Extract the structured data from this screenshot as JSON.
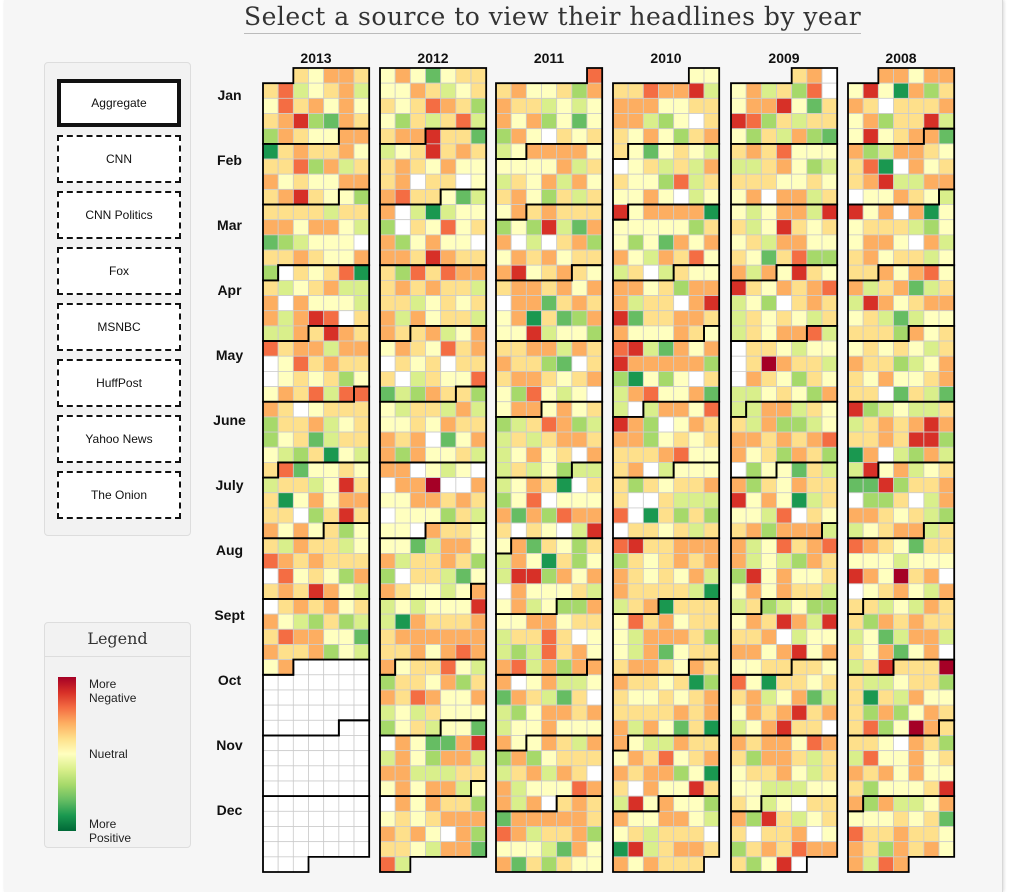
{
  "title": "Select a source to view their headlines by year",
  "sources": [
    "Aggregate",
    "CNN",
    "CNN Politics",
    "Fox",
    "MSNBC",
    "HuffPost",
    "Yahoo News",
    "The Onion"
  ],
  "selected_source": "Aggregate",
  "legend": {
    "title": "Legend",
    "top_label_1": "More",
    "top_label_2": "Negative",
    "mid_label": "Nuetral",
    "bottom_label_1": "More",
    "bottom_label_2": "Positive",
    "colors": [
      "#a50026",
      "#d73027",
      "#f46d43",
      "#fdae61",
      "#fee08b",
      "#ffffbf",
      "#d9ef8b",
      "#a6d96a",
      "#66bd63",
      "#1a9850",
      "#006837"
    ]
  },
  "chart_data": {
    "type": "heatmap",
    "title": "Select a source to view their headlines by year",
    "years": [
      "2013",
      "2012",
      "2011",
      "2010",
      "2009",
      "2008"
    ],
    "months": [
      "Jan",
      "Feb",
      "Mar",
      "Apr",
      "May",
      "June",
      "July",
      "Aug",
      "Sept",
      "Oct",
      "Nov",
      "Dec"
    ],
    "color_scale": [
      "More Negative",
      "Nuetral",
      "More Positive"
    ],
    "cell_encoding": "one cell per day, columns = day of week, color = headline sentiment",
    "no_data_after": "2013-09-30"
  }
}
